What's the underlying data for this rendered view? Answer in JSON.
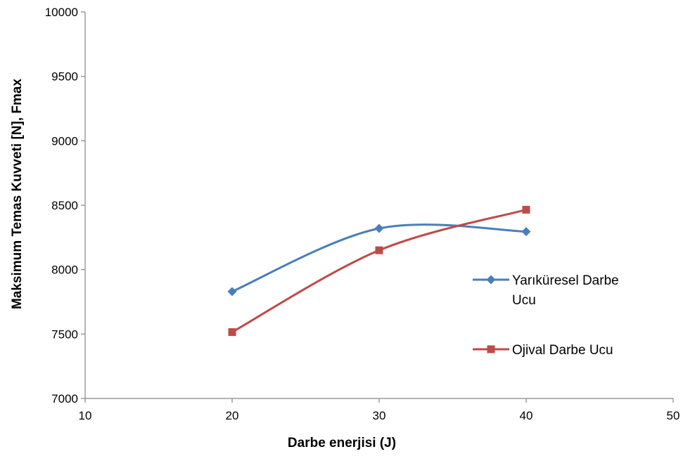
{
  "chart_data": {
    "type": "line",
    "title": "",
    "xlabel": "Darbe enerjisi (J)",
    "ylabel": "Maksimum Temas Kuvveti [N], Fmax",
    "xlim": [
      10,
      50
    ],
    "ylim": [
      7000,
      10000
    ],
    "xticks": [
      10,
      20,
      30,
      40,
      50
    ],
    "yticks": [
      7000,
      7500,
      8000,
      8500,
      9000,
      9500,
      10000
    ],
    "grid": false,
    "smooth": true,
    "legend_position": "right",
    "series": [
      {
        "name_lines": [
          "Yarıküresel Darbe",
          "Ucu"
        ],
        "color": "#4a7ebb",
        "marker": "diamond",
        "x": [
          20,
          30,
          40
        ],
        "y": [
          7830,
          8320,
          8295
        ]
      },
      {
        "name_lines": [
          "Ojival Darbe Ucu"
        ],
        "color": "#be4b48",
        "marker": "square",
        "x": [
          20,
          30,
          40
        ],
        "y": [
          7515,
          8150,
          8465
        ]
      }
    ]
  }
}
